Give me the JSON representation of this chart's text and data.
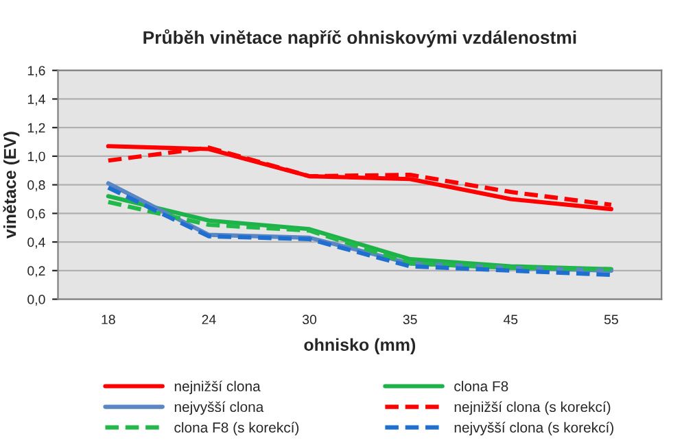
{
  "chart_data": {
    "type": "line",
    "title": "Průběh vinětace napříč ohniskovými vzdálenostmi",
    "xlabel": "ohnisko (mm)",
    "ylabel": "vinětace (EV)",
    "categories": [
      "18",
      "24",
      "30",
      "35",
      "45",
      "55"
    ],
    "series": [
      {
        "name": "nejnižší clona",
        "color": "#ff0000",
        "line_style": "solid",
        "values": [
          1.07,
          1.05,
          0.86,
          0.84,
          0.7,
          0.63
        ]
      },
      {
        "name": "clona F8",
        "color": "#1db34a",
        "line_style": "solid",
        "values": [
          0.72,
          0.55,
          0.49,
          0.28,
          0.23,
          0.21
        ]
      },
      {
        "name": "nejvyšší clona",
        "color": "#5a86c4",
        "line_style": "solid",
        "values": [
          0.81,
          0.45,
          0.43,
          0.25,
          0.22,
          0.2
        ]
      },
      {
        "name": "nejnižší clona (s korekcí)",
        "color": "#ff0000",
        "line_style": "dashed",
        "values": [
          0.97,
          1.06,
          0.86,
          0.87,
          0.75,
          0.66
        ]
      },
      {
        "name": "clona F8 (s korekcí)",
        "color": "#22b84a",
        "line_style": "dashed",
        "values": [
          0.68,
          0.52,
          0.48,
          0.25,
          0.22,
          0.21
        ]
      },
      {
        "name": "nejvyšší clona (s korekcí)",
        "color": "#1f6fd0",
        "line_style": "dashed",
        "values": [
          0.78,
          0.44,
          0.42,
          0.23,
          0.2,
          0.17
        ]
      }
    ],
    "ylim": [
      0,
      1.6
    ],
    "yticks": [
      {
        "value": 0,
        "label": "0,0"
      },
      {
        "value": 0.2,
        "label": "0,2"
      },
      {
        "value": 0.4,
        "label": "0,4"
      },
      {
        "value": 0.6,
        "label": "0,6"
      },
      {
        "value": 0.8,
        "label": "0,8"
      },
      {
        "value": 1.0,
        "label": "1,0"
      },
      {
        "value": 1.2,
        "label": "1,2"
      },
      {
        "value": 1.4,
        "label": "1,4"
      },
      {
        "value": 1.6,
        "label": "1,6"
      }
    ],
    "grid": "y",
    "legend": "bottom",
    "marker": "none"
  }
}
